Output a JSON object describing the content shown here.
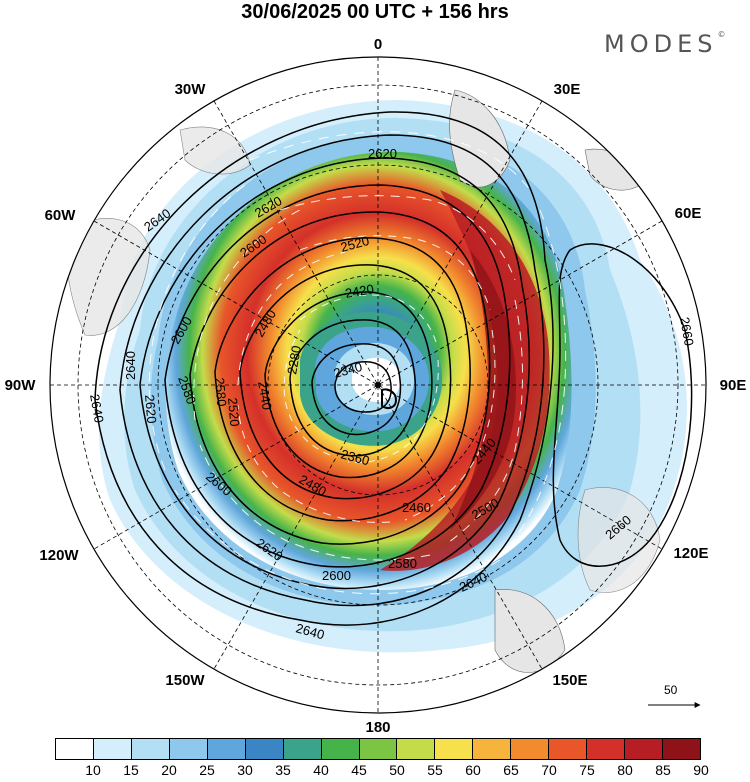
{
  "header": {
    "title": "30/06/2025  00 UTC  + 156 hrs",
    "logo": "MODES"
  },
  "map": {
    "projection": "south-polar-stereographic",
    "longitude_labels": [
      "0",
      "30E",
      "60E",
      "90E",
      "120E",
      "150E",
      "180",
      "150W",
      "120W",
      "90W",
      "60W",
      "30W"
    ],
    "contour_labels": [
      "2620",
      "2640",
      "2620",
      "2600",
      "2520",
      "2420",
      "2600",
      "2580",
      "2480",
      "2440",
      "2340",
      "2280",
      "2580",
      "2640",
      "2640",
      "2620",
      "2520",
      "2360",
      "2440",
      "2460",
      "2480",
      "2500",
      "2580",
      "2600",
      "2620",
      "2640",
      "2640",
      "2660",
      "2660",
      "2600"
    ],
    "reference_vector": "50"
  },
  "colorbar": {
    "ticks": [
      "10",
      "15",
      "20",
      "25",
      "30",
      "35",
      "40",
      "45",
      "50",
      "55",
      "60",
      "65",
      "70",
      "75",
      "80",
      "85",
      "90"
    ],
    "colors": [
      "#ffffff",
      "#d4eefb",
      "#b3dff5",
      "#8ec8ec",
      "#5fa6dc",
      "#3a86c4",
      "#3aa38a",
      "#46b34a",
      "#7cc443",
      "#c4dc4a",
      "#f6e04b",
      "#f6b43c",
      "#f28a2e",
      "#e8562a",
      "#d4302a",
      "#b71e24",
      "#8e1318"
    ]
  }
}
